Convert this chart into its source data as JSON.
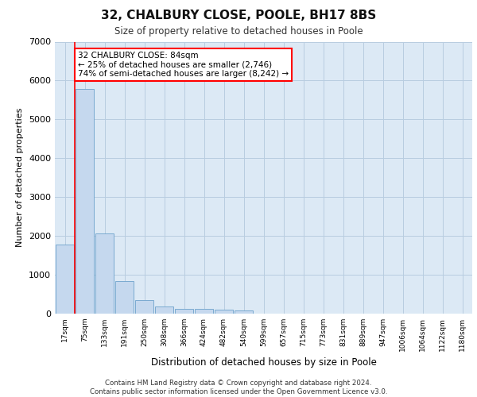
{
  "title": "32, CHALBURY CLOSE, POOLE, BH17 8BS",
  "subtitle": "Size of property relative to detached houses in Poole",
  "xlabel": "Distribution of detached houses by size in Poole",
  "ylabel": "Number of detached properties",
  "bar_color": "#c5d8ee",
  "bar_edge_color": "#7aaad0",
  "grid_color": "#c8d8e8",
  "background_color": "#dce9f5",
  "categories": [
    "17sqm",
    "75sqm",
    "133sqm",
    "191sqm",
    "250sqm",
    "308sqm",
    "366sqm",
    "424sqm",
    "482sqm",
    "540sqm",
    "599sqm",
    "657sqm",
    "715sqm",
    "773sqm",
    "831sqm",
    "889sqm",
    "947sqm",
    "1006sqm",
    "1064sqm",
    "1122sqm",
    "1180sqm"
  ],
  "values": [
    1780,
    5780,
    2060,
    830,
    340,
    190,
    130,
    120,
    110,
    90,
    0,
    0,
    0,
    0,
    0,
    0,
    0,
    0,
    0,
    0,
    0
  ],
  "ylim": [
    0,
    7000
  ],
  "yticks": [
    0,
    1000,
    2000,
    3000,
    4000,
    5000,
    6000,
    7000
  ],
  "property_label": "32 CHALBURY CLOSE: 84sqm",
  "annotation_line1": "← 25% of detached houses are smaller (2,746)",
  "annotation_line2": "74% of semi-detached houses are larger (8,242) →",
  "red_line_x": 0.5,
  "footer_line1": "Contains HM Land Registry data © Crown copyright and database right 2024.",
  "footer_line2": "Contains public sector information licensed under the Open Government Licence v3.0."
}
